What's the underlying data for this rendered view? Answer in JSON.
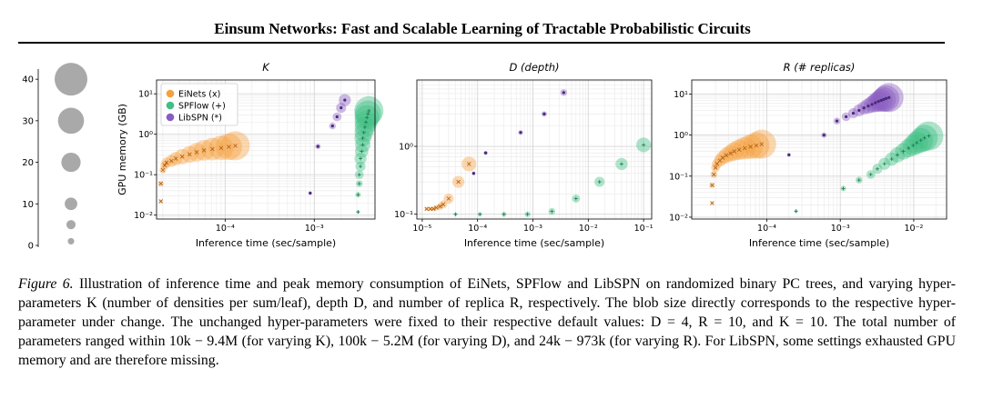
{
  "header": {
    "title": "Einsum Networks: Fast and Scalable Learning of Tractable Probabilistic Circuits"
  },
  "caption": {
    "label": "Figure 6.",
    "text": "Illustration of inference time and peak memory consumption of EiNets, SPFlow and LibSPN on randomized binary PC trees, and varying hyper-parameters K (number of densities per sum/leaf), depth D, and number of replica R, respectively. The blob size directly corresponds to the respective hyper-parameter under change. The unchanged hyper-parameters were fixed to their respective default values: D = 4, R = 10, and K = 10. The total number of parameters ranged within 10k − 9.4M (for varying K), 100k − 5.2M (for varying D), and 24k − 973k (for varying R). For LibSPN, some settings exhausted GPU memory and are therefore missing."
  },
  "colors": {
    "einets": "#f5a142",
    "spflow": "#3fbf83",
    "libspn": "#8a5cc2",
    "size_legend": "#a9a9a9"
  },
  "chart_data": [
    {
      "type": "scatter",
      "title": "size legend",
      "values": [
        40,
        30,
        20,
        10,
        5,
        1
      ],
      "ticks": [
        "40",
        "30",
        "20",
        "10",
        "0"
      ],
      "ylim": [
        0,
        42
      ]
    },
    {
      "type": "scatter",
      "title": "K",
      "xlabel": "Inference time (sec/sample)",
      "ylabel": "GPU memory (GB)",
      "xscale": "log",
      "yscale": "log",
      "xlim": [
        1.7e-05,
        0.0048
      ],
      "ylim": [
        0.008,
        22
      ],
      "xticks": [
        {
          "v": 0.0001,
          "label": "10⁻⁴"
        },
        {
          "v": 0.001,
          "label": "10⁻³"
        }
      ],
      "yticks": [
        {
          "v": 0.01,
          "label": "10⁻²"
        },
        {
          "v": 0.1,
          "label": "10⁻¹"
        },
        {
          "v": 1,
          "label": "10⁰"
        },
        {
          "v": 10,
          "label": "10¹"
        }
      ],
      "legend": [
        "EiNets (x)",
        "SPFlow (+)",
        "LibSPN (*)"
      ],
      "legend_position": "top-left",
      "series": [
        {
          "name": "EiNets (x)",
          "marker": "x",
          "color": "#f5a142",
          "x": [
            1.9e-05,
            1.9e-05,
            2e-05,
            2.1e-05,
            2.2e-05,
            2.5e-05,
            2.8e-05,
            3.3e-05,
            4e-05,
            4.8e-05,
            5.8e-05,
            7.2e-05,
            9e-05,
            0.00011,
            0.00013
          ],
          "y": [
            0.022,
            0.06,
            0.13,
            0.17,
            0.2,
            0.22,
            0.25,
            0.28,
            0.32,
            0.36,
            0.4,
            0.43,
            0.46,
            0.49,
            0.52
          ],
          "size": [
            1,
            4,
            6,
            9,
            11,
            14,
            16,
            19,
            21,
            24,
            27,
            30,
            33,
            36,
            40
          ]
        },
        {
          "name": "SPFlow (+)",
          "marker": "+",
          "color": "#3fbf83",
          "x": [
            0.0031,
            0.0031,
            0.0032,
            0.0032,
            0.0033,
            0.0033,
            0.0034,
            0.0035,
            0.0035,
            0.0036,
            0.0037,
            0.0038,
            0.0039,
            0.004,
            0.0041
          ],
          "y": [
            0.012,
            0.032,
            0.06,
            0.1,
            0.16,
            0.25,
            0.38,
            0.55,
            0.8,
            1.1,
            1.5,
            2.0,
            2.6,
            3.2,
            3.8
          ],
          "size": [
            1,
            4,
            6,
            9,
            11,
            14,
            16,
            19,
            21,
            24,
            27,
            30,
            33,
            36,
            40
          ]
        },
        {
          "name": "LibSPN (*)",
          "marker": "*",
          "color": "#8a5cc2",
          "x": [
            0.0009,
            0.0011,
            0.0016,
            0.0018,
            0.002,
            0.0022
          ],
          "y": [
            0.035,
            0.5,
            1.6,
            2.7,
            4.5,
            7.0
          ],
          "size": [
            1,
            4,
            6,
            9,
            11,
            14
          ]
        }
      ]
    },
    {
      "type": "scatter",
      "title": "D (depth)",
      "xlabel": "Inference time (sec/sample)",
      "ylabel": "",
      "xscale": "log",
      "yscale": "log",
      "xlim": [
        8e-06,
        0.14
      ],
      "ylim": [
        0.085,
        9.5
      ],
      "xticks": [
        {
          "v": 1e-05,
          "label": "10⁻⁵"
        },
        {
          "v": 0.0001,
          "label": "10⁻⁴"
        },
        {
          "v": 0.001,
          "label": "10⁻³"
        },
        {
          "v": 0.01,
          "label": "10⁻²"
        },
        {
          "v": 0.1,
          "label": "10⁻¹"
        }
      ],
      "yticks": [
        {
          "v": 0.1,
          "label": "10⁻¹"
        },
        {
          "v": 1,
          "label": "10⁰"
        }
      ],
      "series": [
        {
          "name": "EiNets (x)",
          "marker": "x",
          "color": "#f5a142",
          "x": [
            1.2e-05,
            1.4e-05,
            1.6e-05,
            1.8e-05,
            2.1e-05,
            2.4e-05,
            3e-05,
            4.5e-05,
            7e-05
          ],
          "y": [
            0.12,
            0.12,
            0.12,
            0.125,
            0.13,
            0.14,
            0.17,
            0.3,
            0.55
          ],
          "size": [
            1,
            2,
            3,
            4,
            6,
            8,
            11,
            14,
            18
          ]
        },
        {
          "name": "SPFlow (+)",
          "marker": "+",
          "color": "#3fbf83",
          "x": [
            4e-05,
            0.00011,
            0.0003,
            0.0008,
            0.0022,
            0.006,
            0.016,
            0.04,
            0.1
          ],
          "y": [
            0.1,
            0.1,
            0.1,
            0.1,
            0.11,
            0.17,
            0.3,
            0.55,
            1.05
          ],
          "size": [
            1,
            2,
            3,
            4,
            6,
            8,
            11,
            14,
            18
          ]
        },
        {
          "name": "LibSPN (*)",
          "marker": "*",
          "color": "#8a5cc2",
          "x": [
            8.5e-05,
            0.00014,
            0.0006,
            0.0016,
            0.0036
          ],
          "y": [
            0.4,
            0.8,
            1.6,
            3.0,
            6.2
          ],
          "size": [
            1,
            2,
            3,
            4,
            6
          ]
        }
      ]
    },
    {
      "type": "scatter",
      "title": "R (# replicas)",
      "xlabel": "Inference time (sec/sample)",
      "ylabel": "",
      "xscale": "log",
      "yscale": "log",
      "xlim": [
        9.5e-06,
        0.028
      ],
      "ylim": [
        0.009,
        22
      ],
      "xticks": [
        {
          "v": 0.0001,
          "label": "10⁻⁴"
        },
        {
          "v": 0.001,
          "label": "10⁻³"
        },
        {
          "v": 0.01,
          "label": "10⁻²"
        }
      ],
      "yticks": [
        {
          "v": 0.01,
          "label": "10⁻²"
        },
        {
          "v": 0.1,
          "label": "10⁻¹"
        },
        {
          "v": 1,
          "label": "10⁰"
        },
        {
          "v": 10,
          "label": "10¹"
        }
      ],
      "series": [
        {
          "name": "EiNets (x)",
          "marker": "x",
          "color": "#f5a142",
          "x": [
            1.8e-05,
            1.8e-05,
            1.9e-05,
            2e-05,
            2.1e-05,
            2.3e-05,
            2.5e-05,
            2.8e-05,
            3.2e-05,
            3.6e-05,
            4.2e-05,
            5e-05,
            6e-05,
            7.2e-05,
            8.5e-05
          ],
          "y": [
            0.022,
            0.06,
            0.11,
            0.16,
            0.2,
            0.24,
            0.28,
            0.32,
            0.36,
            0.4,
            0.44,
            0.48,
            0.52,
            0.56,
            0.6
          ],
          "size": [
            1,
            4,
            6,
            9,
            11,
            14,
            16,
            19,
            21,
            24,
            27,
            30,
            33,
            36,
            40
          ]
        },
        {
          "name": "SPFlow (+)",
          "marker": "+",
          "color": "#3fbf83",
          "x": [
            0.00025,
            0.0011,
            0.0018,
            0.0026,
            0.0032,
            0.004,
            0.005,
            0.006,
            0.0072,
            0.0085,
            0.0098,
            0.011,
            0.0125,
            0.014,
            0.016
          ],
          "y": [
            0.014,
            0.05,
            0.08,
            0.11,
            0.15,
            0.2,
            0.26,
            0.33,
            0.4,
            0.48,
            0.56,
            0.65,
            0.75,
            0.85,
            0.95
          ],
          "size": [
            1,
            4,
            6,
            9,
            11,
            14,
            16,
            19,
            21,
            24,
            27,
            30,
            33,
            36,
            40
          ]
        },
        {
          "name": "LibSPN (*)",
          "marker": "*",
          "color": "#8a5cc2",
          "x": [
            0.0002,
            0.0006,
            0.0009,
            0.0012,
            0.0015,
            0.0018,
            0.0021,
            0.0024,
            0.0027,
            0.003,
            0.0033,
            0.0036,
            0.0039,
            0.0042,
            0.0046
          ],
          "y": [
            0.33,
            1.0,
            2.2,
            2.8,
            3.4,
            4.0,
            4.6,
            5.1,
            5.6,
            6.1,
            6.6,
            7.0,
            7.4,
            7.8,
            8.2
          ],
          "size": [
            1,
            4,
            6,
            9,
            11,
            14,
            16,
            19,
            21,
            24,
            27,
            30,
            33,
            36,
            40
          ]
        }
      ]
    }
  ]
}
